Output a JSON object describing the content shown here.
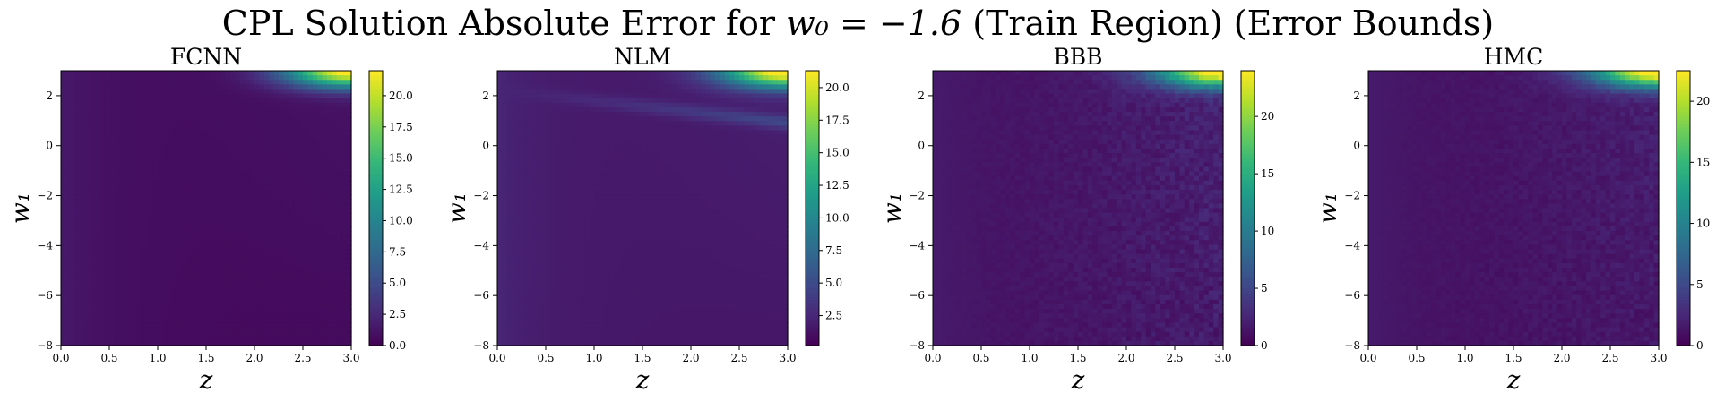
{
  "figure": {
    "title_prefix": "CPL Solution Absolute Error for ",
    "title_math": "w₀ = −1.6",
    "title_suffix": " (Train Region) (Error Bounds)"
  },
  "chart_data": [
    {
      "type": "heatmap",
      "title": "FCNN",
      "xlabel": "z",
      "ylabel": "w₁",
      "xlim": [
        0.0,
        3.0
      ],
      "ylim": [
        -8,
        3
      ],
      "xticks": [
        "0.0",
        "0.5",
        "1.0",
        "1.5",
        "2.0",
        "2.5",
        "3.0"
      ],
      "yticks": [
        "−8",
        "−6",
        "−4",
        "−2",
        "0",
        "2"
      ],
      "colorbar": {
        "min": 0.0,
        "max": 22.0,
        "ticks": [
          "0.0",
          "2.5",
          "5.0",
          "7.5",
          "10.0",
          "12.5",
          "15.0",
          "17.5",
          "20.0"
        ]
      },
      "pattern": {
        "background": 0.6,
        "corner_peak": 22.0,
        "ridge": 0.0,
        "noise": 0.0
      }
    },
    {
      "type": "heatmap",
      "title": "NLM",
      "xlabel": "z",
      "ylabel": "w₁",
      "xlim": [
        0.0,
        3.0
      ],
      "ylim": [
        -8,
        3
      ],
      "xticks": [
        "0.0",
        "0.5",
        "1.0",
        "1.5",
        "2.0",
        "2.5",
        "3.0"
      ],
      "yticks": [
        "−8",
        "−6",
        "−4",
        "−2",
        "0",
        "2"
      ],
      "colorbar": {
        "min": 0.2,
        "max": 21.3,
        "ticks": [
          "2.5",
          "5.0",
          "7.5",
          "10.0",
          "12.5",
          "15.0",
          "17.5",
          "20.0"
        ]
      },
      "pattern": {
        "background": 1.5,
        "corner_peak": 21.3,
        "ridge": 3.0,
        "noise": 0.0
      }
    },
    {
      "type": "heatmap",
      "title": "BBB",
      "xlabel": "z",
      "ylabel": "w₁",
      "xlim": [
        0.0,
        3.0
      ],
      "ylim": [
        -8,
        3
      ],
      "xticks": [
        "0.0",
        "0.5",
        "1.0",
        "1.5",
        "2.0",
        "2.5",
        "3.0"
      ],
      "yticks": [
        "−8",
        "−6",
        "−4",
        "−2",
        "0",
        "2"
      ],
      "colorbar": {
        "min": 0.0,
        "max": 24.0,
        "ticks": [
          "0",
          "5",
          "10",
          "15",
          "20"
        ]
      },
      "pattern": {
        "background": 0.9,
        "corner_peak": 24.0,
        "ridge": 0.0,
        "noise": 1.2
      }
    },
    {
      "type": "heatmap",
      "title": "HMC",
      "xlabel": "z",
      "ylabel": "w₁",
      "xlim": [
        0.0,
        3.0
      ],
      "ylim": [
        -8,
        3
      ],
      "xticks": [
        "0.0",
        "0.5",
        "1.0",
        "1.5",
        "2.0",
        "2.5",
        "3.0"
      ],
      "yticks": [
        "−8",
        "−6",
        "−4",
        "−2",
        "0",
        "2"
      ],
      "colorbar": {
        "min": 0.0,
        "max": 22.5,
        "ticks": [
          "0",
          "5",
          "10",
          "15",
          "20"
        ]
      },
      "pattern": {
        "background": 0.8,
        "corner_peak": 22.5,
        "ridge": 0.0,
        "noise": 0.9
      }
    }
  ]
}
